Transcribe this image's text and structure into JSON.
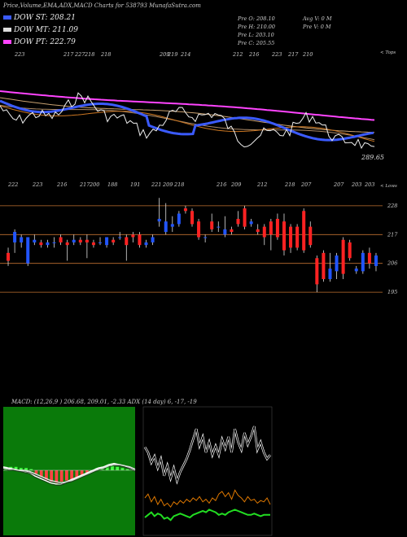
{
  "title": "Price,Volume,EMA,ADX,MACD Charts for 538793 MunafaSutra.com",
  "legend": [
    {
      "label": "DOW ST: 208.21",
      "color": "#3b5bff"
    },
    {
      "label": "DOW MT: 211.09",
      "color": "#dddddd"
    },
    {
      "label": "DOW PT: 222.79",
      "color": "#ff44ff"
    }
  ],
  "ohlc": {
    "open": "Pre  O: 208.10",
    "high": "Pre  H: 210.00",
    "low": "Pre  L: 203.10",
    "close": "Pre  C: 205.55",
    "avg_vol": "Avg V: 0  M",
    "pre_vol": "Pre  V: 0  M"
  },
  "top_label": "< Tops",
  "low_label": "< Lows",
  "price_label": "289.65",
  "macd_label": "MACD: (12,26,9 ) 206.68, 209.01, -2.33 ADX (14 day) 6, -17, -19",
  "colors": {
    "up": "#2255ff",
    "down": "#ff2222",
    "ema_pt": "#ff44ff",
    "ema_st": "#3b5bff",
    "orange": "#cc7722"
  },
  "chart_data": [
    {
      "type": "line",
      "name": "ema-panel",
      "tops": [
        "223",
        "217",
        "227",
        "218",
        "218",
        "209",
        "219",
        "214",
        "212",
        "216",
        "223",
        "217",
        "210"
      ],
      "lows": [
        "222",
        "223",
        "216",
        "217",
        "200",
        "188",
        "191",
        "221",
        "209",
        "218",
        "216",
        "209",
        "212",
        "218",
        "207",
        "207",
        "203",
        "203"
      ]
    },
    {
      "type": "candlestick",
      "name": "price-panel",
      "ticks": [
        228,
        217,
        206,
        195
      ],
      "ylim": [
        191,
        232
      ],
      "candles": [
        {
          "o": 210,
          "c": 207,
          "h": 212,
          "l": 205
        },
        {
          "o": 214,
          "c": 218,
          "h": 219,
          "l": 210
        },
        {
          "o": 214,
          "c": 216,
          "h": 217,
          "l": 212
        },
        {
          "o": 206,
          "c": 216,
          "h": 216,
          "l": 205
        },
        {
          "o": 214,
          "c": 215,
          "h": 217,
          "l": 213
        },
        {
          "o": 214,
          "c": 213,
          "h": 215,
          "l": 212
        },
        {
          "o": 213,
          "c": 214,
          "h": 215,
          "l": 212
        },
        {
          "o": 214,
          "c": 214,
          "h": 216,
          "l": 212
        },
        {
          "o": 216,
          "c": 214,
          "h": 217,
          "l": 213
        },
        {
          "o": 214,
          "c": 213,
          "h": 215,
          "l": 207
        },
        {
          "o": 214,
          "c": 215,
          "h": 217,
          "l": 213
        },
        {
          "o": 215,
          "c": 214,
          "h": 216,
          "l": 213
        },
        {
          "o": 215,
          "c": 214,
          "h": 217,
          "l": 208
        },
        {
          "o": 214,
          "c": 213,
          "h": 215,
          "l": 212
        },
        {
          "o": 214,
          "c": 214,
          "h": 216,
          "l": 213
        },
        {
          "o": 213,
          "c": 216,
          "h": 216,
          "l": 212
        },
        {
          "o": 215,
          "c": 214,
          "h": 216,
          "l": 213
        },
        {
          "o": 216,
          "c": 216,
          "h": 218,
          "l": 215
        },
        {
          "o": 216,
          "c": 213,
          "h": 217,
          "l": 207
        },
        {
          "o": 217,
          "c": 216,
          "h": 218,
          "l": 214
        },
        {
          "o": 217,
          "c": 213,
          "h": 218,
          "l": 212
        },
        {
          "o": 213,
          "c": 214,
          "h": 215,
          "l": 212
        },
        {
          "o": 214,
          "c": 216,
          "h": 217,
          "l": 213
        },
        {
          "o": 222,
          "c": 223,
          "h": 231,
          "l": 220
        },
        {
          "o": 218,
          "c": 222,
          "h": 229,
          "l": 217
        },
        {
          "o": 220,
          "c": 221,
          "h": 224,
          "l": 218
        },
        {
          "o": 221,
          "c": 225,
          "h": 226,
          "l": 220
        },
        {
          "o": 227,
          "c": 226,
          "h": 228,
          "l": 225
        },
        {
          "o": 226,
          "c": 221,
          "h": 227,
          "l": 220
        },
        {
          "o": 222,
          "c": 216,
          "h": 223,
          "l": 215
        },
        {
          "o": 216,
          "c": 216,
          "h": 217,
          "l": 214
        },
        {
          "o": 222,
          "c": 219,
          "h": 225,
          "l": 218
        },
        {
          "o": 220,
          "c": 220,
          "h": 222,
          "l": 218
        },
        {
          "o": 217,
          "c": 219,
          "h": 224,
          "l": 216
        },
        {
          "o": 219,
          "c": 218,
          "h": 220,
          "l": 217
        },
        {
          "o": 223,
          "c": 221,
          "h": 226,
          "l": 220
        },
        {
          "o": 227,
          "c": 220,
          "h": 228,
          "l": 219
        },
        {
          "o": 221,
          "c": 222,
          "h": 223,
          "l": 220
        },
        {
          "o": 219,
          "c": 218,
          "h": 221,
          "l": 217
        },
        {
          "o": 220,
          "c": 216,
          "h": 221,
          "l": 213
        },
        {
          "o": 222,
          "c": 217,
          "h": 223,
          "l": 211
        },
        {
          "o": 223,
          "c": 216,
          "h": 225,
          "l": 215
        },
        {
          "o": 222,
          "c": 211,
          "h": 225,
          "l": 209
        },
        {
          "o": 220,
          "c": 212,
          "h": 221,
          "l": 210
        },
        {
          "o": 220,
          "c": 212,
          "h": 221,
          "l": 211
        },
        {
          "o": 226,
          "c": 211,
          "h": 227,
          "l": 210
        },
        {
          "o": 220,
          "c": 213,
          "h": 222,
          "l": 212
        },
        {
          "o": 208,
          "c": 198,
          "h": 209,
          "l": 195
        },
        {
          "o": 210,
          "c": 200,
          "h": 211,
          "l": 199
        },
        {
          "o": 200,
          "c": 204,
          "h": 210,
          "l": 199
        },
        {
          "o": 203,
          "c": 209,
          "h": 210,
          "l": 200
        },
        {
          "o": 215,
          "c": 202,
          "h": 216,
          "l": 200
        },
        {
          "o": 214,
          "c": 208,
          "h": 215,
          "l": 207
        },
        {
          "o": 203,
          "c": 204,
          "h": 205,
          "l": 202
        },
        {
          "o": 203,
          "c": 210,
          "h": 211,
          "l": 202
        },
        {
          "o": 210,
          "c": 206,
          "h": 212,
          "l": 204
        },
        {
          "o": 205,
          "c": 209,
          "h": 210,
          "l": 203
        }
      ]
    },
    {
      "type": "line",
      "name": "macd-panel",
      "series": [
        {
          "values": [
            0.3,
            0.2,
            0.1,
            0.0,
            -0.1,
            -0.2,
            -0.5,
            -0.7,
            -0.9,
            -1.1,
            -1.2,
            -1.2,
            -1.0,
            -0.8,
            -0.6,
            -0.4,
            -0.2,
            0.0,
            0.2,
            0.3,
            0.5,
            0.6,
            0.5,
            0.4,
            0.2,
            0.0
          ]
        },
        {
          "values": [
            0.2,
            0.1,
            0.1,
            0.0,
            0.0,
            -0.1,
            -0.3,
            -0.5,
            -0.7,
            -0.9,
            -1.0,
            -1.1,
            -1.0,
            -0.9,
            -0.7,
            -0.5,
            -0.3,
            -0.1,
            0.1,
            0.2,
            0.4,
            0.5,
            0.5,
            0.4,
            0.3,
            0.1
          ]
        }
      ],
      "histogram": [
        0.3,
        0.3,
        0.3,
        0.2,
        0.2,
        0.1,
        -0.3,
        -0.6,
        -0.9,
        -1.0,
        -1.1,
        -1.0,
        -0.9,
        -0.8,
        -0.6,
        -0.4,
        -0.2,
        0.0,
        0.2,
        0.3,
        0.4,
        0.4,
        0.3,
        0.2,
        0.1,
        0.1
      ]
    },
    {
      "type": "line",
      "name": "adx-panel",
      "series": [
        {
          "values": [
            64,
            60,
            52,
            57,
            48,
            55,
            42,
            50,
            40,
            48,
            38,
            45,
            50,
            55,
            62,
            70,
            78,
            65,
            72,
            60,
            68,
            58,
            65,
            58,
            70,
            63,
            72,
            60,
            78,
            68,
            62,
            75,
            66,
            72,
            80,
            62,
            68,
            60,
            55,
            58
          ]
        },
        {
          "values": [
            25,
            28,
            22,
            26,
            20,
            24,
            19,
            21,
            18,
            22,
            20,
            23,
            21,
            24,
            22,
            25,
            23,
            26,
            22,
            24,
            21,
            25,
            23,
            28,
            30,
            26,
            29,
            24,
            31,
            27,
            25,
            22,
            26,
            23,
            24,
            21,
            23,
            22,
            25,
            20
          ]
        },
        {
          "values": [
            10,
            12,
            14,
            11,
            13,
            12,
            9,
            10,
            8,
            11,
            12,
            13,
            12,
            11,
            10,
            12,
            13,
            14,
            15,
            14,
            16,
            15,
            14,
            12,
            13,
            12,
            14,
            15,
            16,
            15,
            14,
            13,
            12,
            12,
            13,
            12,
            11,
            12,
            12,
            12
          ]
        }
      ]
    }
  ]
}
